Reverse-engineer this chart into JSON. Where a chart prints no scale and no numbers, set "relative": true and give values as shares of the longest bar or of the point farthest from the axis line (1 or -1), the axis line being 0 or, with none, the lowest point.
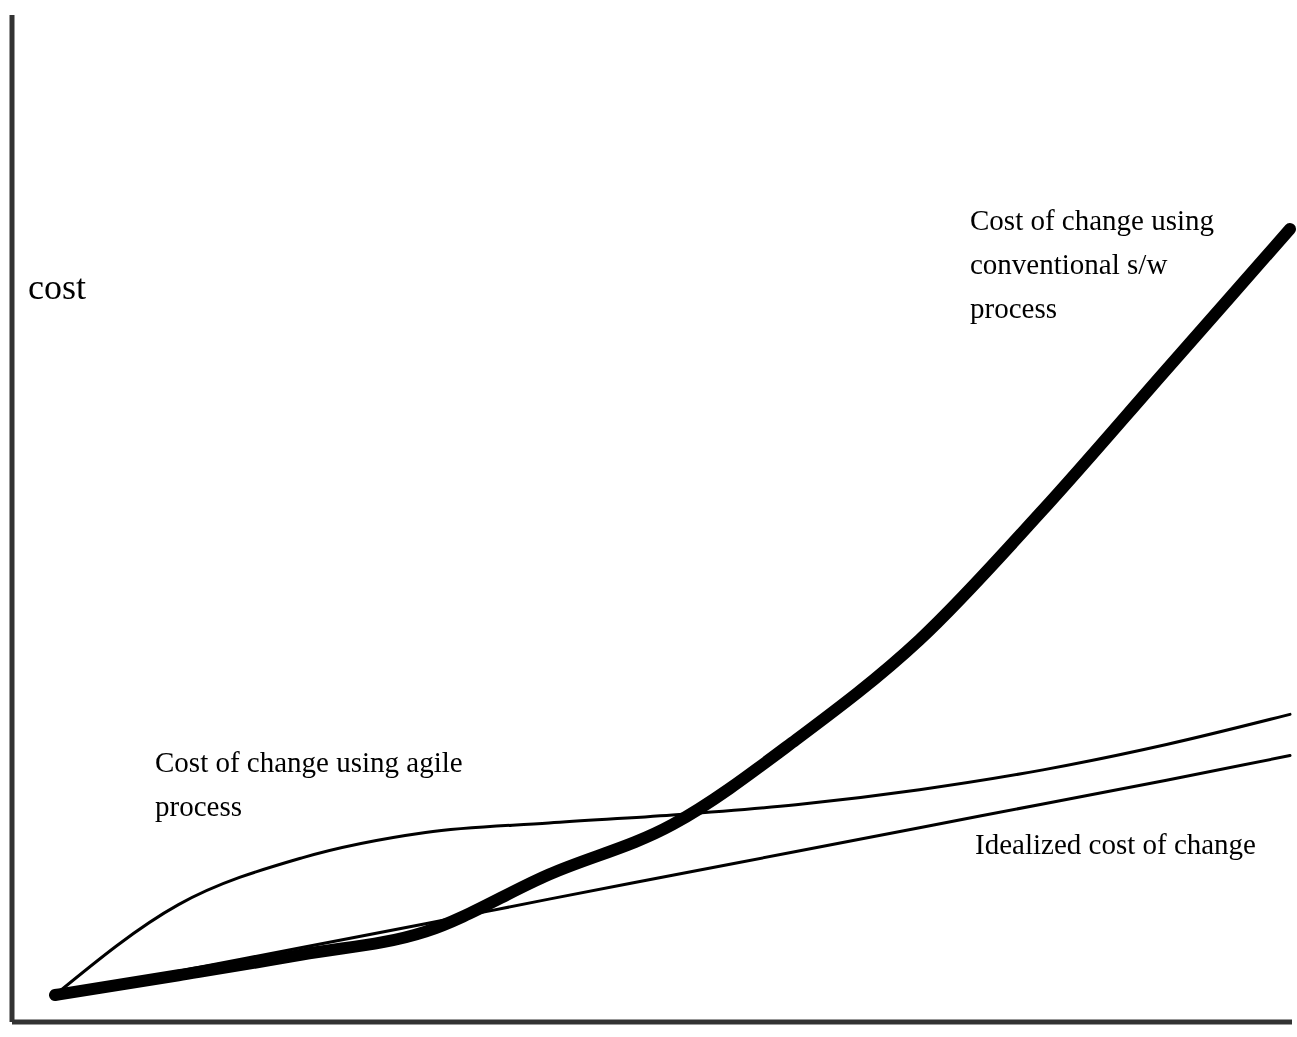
{
  "chart_data": {
    "type": "line",
    "relative": true,
    "ylabel": "cost",
    "categories": [
      null,
      null,
      null,
      null,
      null,
      null,
      null,
      null,
      null,
      null,
      null
    ],
    "series": [
      {
        "color": "#000000",
        "values": [
          0.034,
          0.059,
          0.085,
          0.114,
          0.186,
          0.249,
          0.356,
          0.482,
          0.646,
          0.823,
          1
        ]
      },
      {
        "color": "#000000",
        "values": [
          0.034,
          0.148,
          0.207,
          0.239,
          0.251,
          0.261,
          0.274,
          0.293,
          0.318,
          0.35,
          0.388
        ]
      },
      {
        "color": "#000000",
        "values": [
          0.034,
          0.064,
          0.094,
          0.124,
          0.155,
          0.185,
          0.215,
          0.245,
          0.275,
          0.305,
          0.336
        ]
      }
    ],
    "annotations": [
      "Cost of change using conventional s/w process",
      "Cost of change using agile process",
      "Idealized cost of change"
    ],
    "grid": false,
    "legend": false,
    "marker": "none",
    "line_style": "solid"
  }
}
